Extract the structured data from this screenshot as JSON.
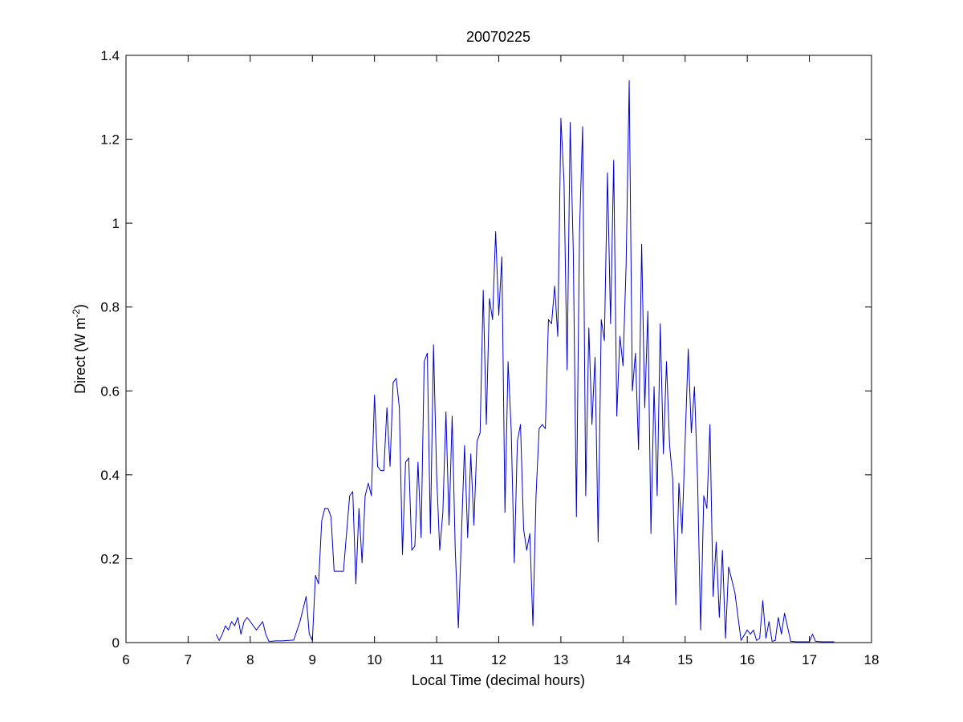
{
  "chart_data": {
    "type": "line",
    "title": "20070225",
    "xlabel": "Local Time (decimal hours)",
    "ylabel_main": "Direct (W m",
    "ylabel_sup": "-2",
    "ylabel_close": ")",
    "xlim": [
      6,
      18
    ],
    "ylim": [
      0,
      1.4
    ],
    "xticks": [
      6,
      7,
      8,
      9,
      10,
      11,
      12,
      13,
      14,
      15,
      16,
      17,
      18
    ],
    "xtick_labels": [
      "6",
      "7",
      "8",
      "9",
      "10",
      "11",
      "12",
      "13",
      "14",
      "15",
      "16",
      "17",
      "18"
    ],
    "yticks": [
      0,
      0.2,
      0.4,
      0.6,
      0.8,
      1.0,
      1.2,
      1.4
    ],
    "ytick_labels": [
      "0",
      "0.2",
      "0.4",
      "0.6",
      "0.8",
      "1",
      "1.2",
      "1.4"
    ],
    "grid": false,
    "line_color": "#0000cc",
    "series": [
      {
        "x": [
          7.45,
          7.5,
          7.55,
          7.6,
          7.65,
          7.7,
          7.75,
          7.8,
          7.85,
          7.9,
          7.95,
          8.0,
          8.1,
          8.2,
          8.25,
          8.3,
          8.35,
          8.4,
          8.5,
          8.6,
          8.7,
          8.8,
          8.9,
          8.95,
          9.0,
          9.05,
          9.1,
          9.15,
          9.2,
          9.25,
          9.3,
          9.35,
          9.4,
          9.5,
          9.6,
          9.65,
          9.7,
          9.75,
          9.8,
          9.85,
          9.9,
          9.95,
          10.0,
          10.05,
          10.1,
          10.15,
          10.2,
          10.25,
          10.3,
          10.35,
          10.4,
          10.45,
          10.5,
          10.55,
          10.6,
          10.65,
          10.7,
          10.75,
          10.8,
          10.85,
          10.9,
          10.95,
          11.0,
          11.05,
          11.1,
          11.15,
          11.2,
          11.25,
          11.3,
          11.35,
          11.4,
          11.45,
          11.5,
          11.55,
          11.6,
          11.65,
          11.7,
          11.75,
          11.8,
          11.85,
          11.9,
          11.95,
          12.0,
          12.05,
          12.1,
          12.15,
          12.2,
          12.25,
          12.3,
          12.35,
          12.4,
          12.45,
          12.5,
          12.55,
          12.6,
          12.65,
          12.7,
          12.75,
          12.8,
          12.85,
          12.9,
          12.95,
          13.0,
          13.05,
          13.1,
          13.15,
          13.2,
          13.25,
          13.3,
          13.35,
          13.4,
          13.45,
          13.5,
          13.55,
          13.6,
          13.65,
          13.7,
          13.75,
          13.8,
          13.85,
          13.9,
          13.95,
          14.0,
          14.05,
          14.1,
          14.15,
          14.2,
          14.25,
          14.3,
          14.35,
          14.4,
          14.45,
          14.5,
          14.55,
          14.6,
          14.65,
          14.7,
          14.75,
          14.8,
          14.85,
          14.9,
          14.95,
          15.0,
          15.05,
          15.1,
          15.15,
          15.2,
          15.25,
          15.3,
          15.35,
          15.4,
          15.45,
          15.5,
          15.55,
          15.6,
          15.65,
          15.7,
          15.8,
          15.9,
          16.0,
          16.05,
          16.1,
          16.15,
          16.2,
          16.25,
          16.3,
          16.35,
          16.4,
          16.45,
          16.5,
          16.55,
          16.6,
          16.7,
          16.8,
          16.9,
          17.0,
          17.05,
          17.1,
          17.2,
          17.3,
          17.4
        ],
        "y": [
          0.02,
          0.005,
          0.02,
          0.04,
          0.03,
          0.05,
          0.04,
          0.06,
          0.02,
          0.05,
          0.06,
          0.05,
          0.03,
          0.05,
          0.02,
          0.003,
          0.003,
          0.004,
          0.004,
          0.005,
          0.006,
          0.05,
          0.11,
          0.02,
          0.005,
          0.16,
          0.14,
          0.29,
          0.32,
          0.32,
          0.3,
          0.17,
          0.17,
          0.17,
          0.35,
          0.36,
          0.14,
          0.32,
          0.19,
          0.35,
          0.38,
          0.35,
          0.59,
          0.42,
          0.41,
          0.41,
          0.56,
          0.42,
          0.62,
          0.63,
          0.56,
          0.21,
          0.43,
          0.44,
          0.22,
          0.23,
          0.43,
          0.25,
          0.67,
          0.69,
          0.26,
          0.71,
          0.4,
          0.22,
          0.31,
          0.55,
          0.28,
          0.54,
          0.22,
          0.035,
          0.26,
          0.47,
          0.25,
          0.45,
          0.28,
          0.48,
          0.5,
          0.84,
          0.52,
          0.82,
          0.77,
          0.98,
          0.78,
          0.92,
          0.31,
          0.67,
          0.51,
          0.19,
          0.48,
          0.52,
          0.27,
          0.22,
          0.26,
          0.04,
          0.35,
          0.51,
          0.52,
          0.51,
          0.77,
          0.76,
          0.85,
          0.73,
          1.25,
          1.1,
          0.65,
          1.24,
          0.93,
          0.3,
          0.98,
          1.23,
          0.35,
          0.75,
          0.52,
          0.68,
          0.24,
          0.77,
          0.72,
          1.12,
          0.76,
          1.15,
          0.54,
          0.73,
          0.66,
          0.9,
          1.34,
          0.6,
          0.69,
          0.46,
          0.95,
          0.56,
          0.79,
          0.26,
          0.61,
          0.35,
          0.76,
          0.45,
          0.67,
          0.47,
          0.39,
          0.09,
          0.38,
          0.26,
          0.48,
          0.7,
          0.5,
          0.61,
          0.39,
          0.03,
          0.35,
          0.32,
          0.52,
          0.11,
          0.24,
          0.06,
          0.22,
          0.01,
          0.18,
          0.12,
          0.005,
          0.03,
          0.02,
          0.03,
          0.005,
          0.01,
          0.1,
          0.01,
          0.05,
          0.003,
          0.005,
          0.06,
          0.02,
          0.07,
          0.003,
          0.002,
          0.002,
          0.002,
          0.02,
          0.003,
          0.002,
          0.002,
          0.002
        ]
      }
    ]
  }
}
